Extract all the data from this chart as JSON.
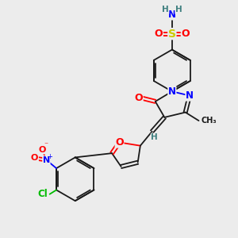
{
  "bg_color": "#ececec",
  "bond_color": "#1a1a1a",
  "atom_colors": {
    "N": "#0000ff",
    "O": "#ff0000",
    "S": "#cccc00",
    "H": "#408080",
    "Cl": "#00bb00",
    "C": "#1a1a1a"
  },
  "figsize": [
    3.0,
    3.0
  ],
  "dpi": 100
}
